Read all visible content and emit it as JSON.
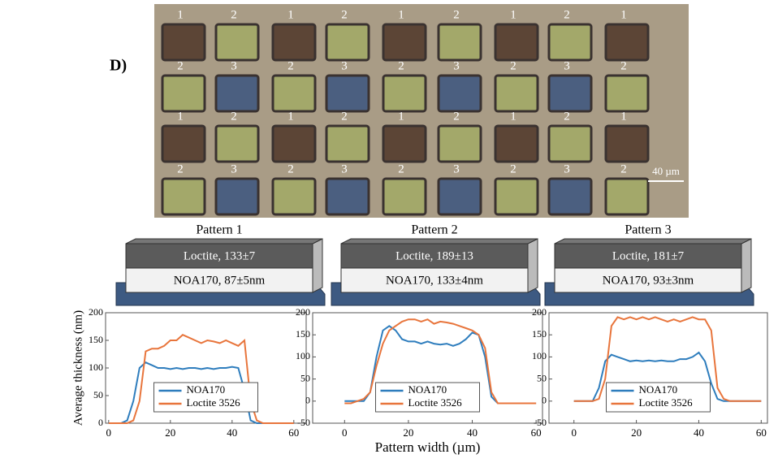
{
  "panel_label": "D)",
  "micrograph": {
    "labels": [
      [
        "1",
        "2",
        "1",
        "2",
        "1",
        "2",
        "1",
        "2",
        "1"
      ],
      [
        "2",
        "3",
        "2",
        "3",
        "2",
        "3",
        "2",
        "3",
        "2"
      ],
      [
        "1",
        "2",
        "1",
        "2",
        "1",
        "2",
        "1",
        "2",
        "1"
      ],
      [
        "2",
        "3",
        "2",
        "3",
        "2",
        "3",
        "2",
        "3",
        "2"
      ]
    ],
    "scale_bar": "40 µm"
  },
  "patterns": [
    {
      "title": "Pattern 1",
      "top_layer": "Loctite, 133±7",
      "bottom_layer": "NOA170, 87±5nm"
    },
    {
      "title": "Pattern 2",
      "top_layer": "Loctite, 189±13",
      "bottom_layer": "NOA170, 133±4nm"
    },
    {
      "title": "Pattern 3",
      "top_layer": "Loctite, 181±7",
      "bottom_layer": "NOA170, 93±3nm"
    }
  ],
  "chart_data": [
    {
      "type": "line",
      "y_label": "Average thickness (nm)",
      "legend": "lower center",
      "x": [
        0,
        2,
        4,
        6,
        8,
        10,
        12,
        14,
        16,
        18,
        20,
        22,
        24,
        26,
        28,
        30,
        32,
        34,
        36,
        38,
        40,
        42,
        44,
        46,
        48,
        50,
        52,
        54,
        56,
        58,
        60
      ],
      "xlim": [
        -1,
        64
      ],
      "ylim": [
        0,
        200
      ],
      "xticks": [
        0,
        20,
        40,
        60
      ],
      "yticks": [
        0,
        50,
        100,
        150,
        200
      ],
      "series": [
        {
          "name": "NOA170",
          "color": "#2e7dbd",
          "values": [
            0,
            0,
            0,
            5,
            40,
            100,
            110,
            105,
            100,
            100,
            98,
            100,
            98,
            100,
            100,
            98,
            100,
            98,
            100,
            100,
            102,
            100,
            60,
            5,
            0,
            0,
            0,
            0,
            0,
            0,
            0
          ]
        },
        {
          "name": "Loctite 3526",
          "color": "#e8753c",
          "values": [
            0,
            0,
            0,
            0,
            5,
            40,
            130,
            135,
            135,
            140,
            150,
            150,
            160,
            155,
            150,
            145,
            150,
            148,
            145,
            150,
            145,
            140,
            150,
            40,
            5,
            0,
            0,
            0,
            0,
            0,
            0
          ]
        }
      ]
    },
    {
      "type": "line",
      "x_label": "Pattern width (µm)",
      "legend": "lower center",
      "x": [
        0,
        2,
        4,
        6,
        8,
        10,
        12,
        14,
        16,
        18,
        20,
        22,
        24,
        26,
        28,
        30,
        32,
        34,
        36,
        38,
        40,
        42,
        44,
        46,
        48,
        50,
        52,
        54,
        56,
        58,
        60
      ],
      "xlim": [
        -10,
        62
      ],
      "ylim": [
        -50,
        200
      ],
      "xticks": [
        0,
        20,
        40,
        60
      ],
      "yticks": [
        -50,
        0,
        50,
        100,
        150,
        200
      ],
      "series": [
        {
          "name": "NOA170",
          "color": "#2e7dbd",
          "values": [
            0,
            0,
            0,
            0,
            20,
            100,
            160,
            170,
            160,
            140,
            135,
            135,
            130,
            135,
            130,
            128,
            130,
            125,
            130,
            140,
            155,
            150,
            100,
            10,
            -5,
            -5,
            -5,
            -5,
            -5,
            -5,
            -5
          ]
        },
        {
          "name": "Loctite 3526",
          "color": "#e8753c",
          "values": [
            -5,
            -5,
            0,
            5,
            20,
            80,
            130,
            160,
            170,
            180,
            185,
            185,
            180,
            185,
            175,
            180,
            178,
            175,
            170,
            165,
            160,
            150,
            120,
            20,
            -5,
            -5,
            -5,
            -5,
            -5,
            -5,
            -5
          ]
        }
      ]
    },
    {
      "type": "line",
      "legend": "lower center",
      "x": [
        0,
        2,
        4,
        6,
        8,
        10,
        12,
        14,
        16,
        18,
        20,
        22,
        24,
        26,
        28,
        30,
        32,
        34,
        36,
        38,
        40,
        42,
        44,
        46,
        48,
        50,
        52,
        54,
        56,
        58,
        60
      ],
      "xlim": [
        -8,
        62
      ],
      "ylim": [
        -50,
        200
      ],
      "xticks": [
        0,
        20,
        40,
        60
      ],
      "yticks": [
        -50,
        0,
        50,
        100,
        150,
        200
      ],
      "series": [
        {
          "name": "NOA170",
          "color": "#2e7dbd",
          "values": [
            0,
            0,
            0,
            0,
            30,
            90,
            105,
            100,
            95,
            90,
            92,
            90,
            92,
            90,
            92,
            90,
            90,
            95,
            95,
            100,
            110,
            90,
            40,
            5,
            0,
            0,
            0,
            0,
            0,
            0,
            0
          ]
        },
        {
          "name": "Loctite 3526",
          "color": "#e8753c",
          "values": [
            0,
            0,
            0,
            0,
            5,
            50,
            170,
            190,
            185,
            190,
            185,
            190,
            185,
            190,
            185,
            180,
            185,
            180,
            185,
            190,
            185,
            185,
            160,
            30,
            5,
            0,
            0,
            0,
            0,
            0,
            0
          ]
        }
      ]
    }
  ]
}
